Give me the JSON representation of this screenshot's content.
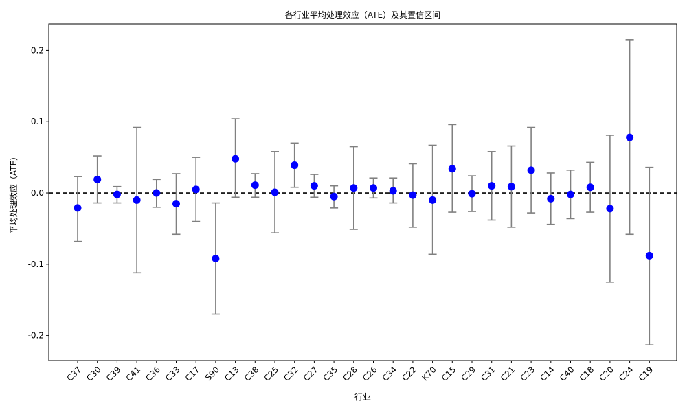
{
  "chart_data": {
    "type": "scatter",
    "title": "各行业平均处理效应（ATE）及其置信区间",
    "xlabel": "行业",
    "ylabel": "平均处理效应（ATE）",
    "ylim": [
      -0.235,
      0.237
    ],
    "yticks": [
      -0.2,
      -0.1,
      0.0,
      0.1,
      0.2
    ],
    "ytick_labels": [
      "-0.2",
      "-0.1",
      "0.0",
      "0.1",
      "0.2"
    ],
    "reference_line": 0.0,
    "grid": false,
    "point_color": "#0000ff",
    "errorbar_color": "#808080",
    "reference_line_color": "#000000",
    "categories": [
      "C37",
      "C30",
      "C39",
      "C41",
      "C36",
      "C33",
      "C17",
      "S90",
      "C13",
      "C38",
      "C25",
      "C32",
      "C27",
      "C35",
      "C28",
      "C26",
      "C34",
      "C22",
      "K70",
      "C15",
      "C29",
      "C31",
      "C21",
      "C23",
      "C14",
      "C40",
      "C18",
      "C20",
      "C24",
      "C19"
    ],
    "ate": [
      -0.021,
      0.019,
      -0.002,
      -0.01,
      0.0,
      -0.015,
      0.005,
      -0.092,
      0.048,
      0.011,
      0.001,
      0.039,
      0.01,
      -0.005,
      0.007,
      0.007,
      0.003,
      -0.003,
      -0.01,
      0.034,
      -0.001,
      0.01,
      0.009,
      0.032,
      -0.008,
      -0.002,
      0.008,
      -0.022,
      0.078,
      -0.088
    ],
    "ci_lower": [
      -0.068,
      -0.014,
      -0.014,
      -0.112,
      -0.02,
      -0.058,
      -0.04,
      -0.17,
      -0.006,
      -0.006,
      -0.056,
      0.008,
      -0.006,
      -0.021,
      -0.051,
      -0.007,
      -0.014,
      -0.048,
      -0.086,
      -0.027,
      -0.026,
      -0.038,
      -0.048,
      -0.028,
      -0.044,
      -0.036,
      -0.027,
      -0.125,
      -0.058,
      -0.213
    ],
    "ci_upper": [
      0.023,
      0.052,
      0.009,
      0.092,
      0.019,
      0.027,
      0.05,
      -0.014,
      0.104,
      0.027,
      0.058,
      0.07,
      0.026,
      0.01,
      0.065,
      0.021,
      0.021,
      0.041,
      0.067,
      0.096,
      0.024,
      0.058,
      0.066,
      0.092,
      0.028,
      0.032,
      0.043,
      0.081,
      0.215,
      0.036
    ]
  }
}
